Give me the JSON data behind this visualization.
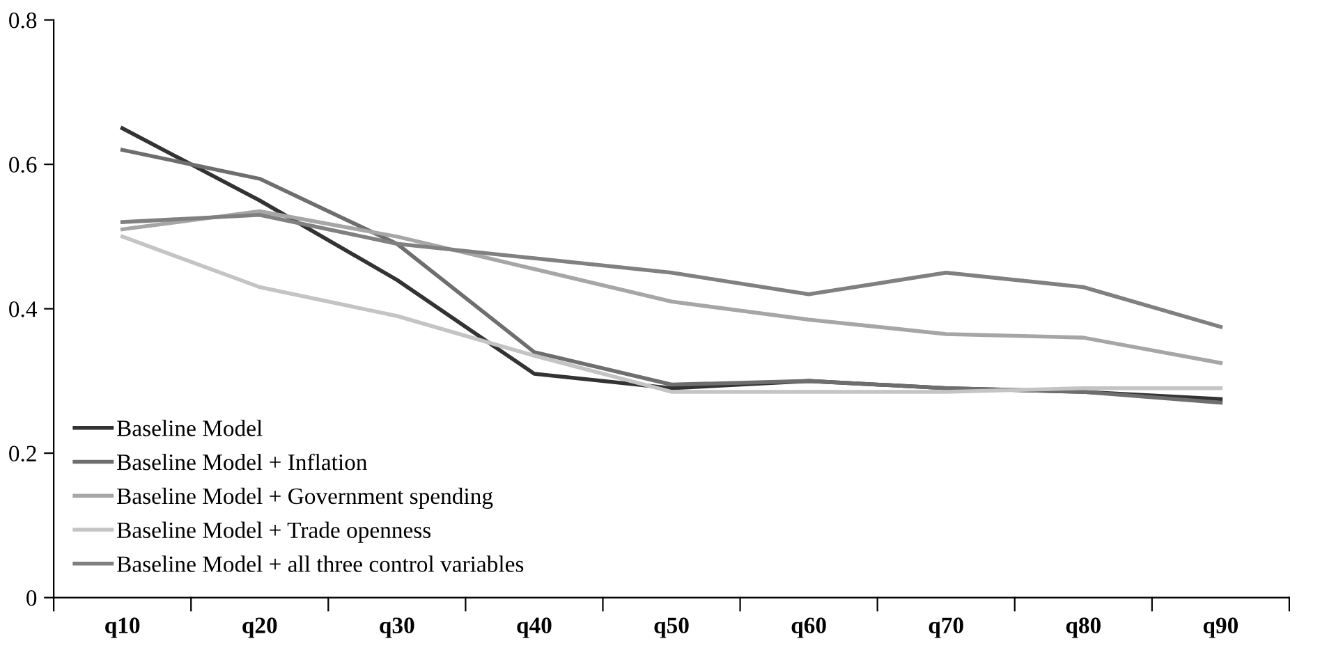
{
  "chart_data": {
    "type": "line",
    "categories": [
      "q10",
      "q20",
      "q30",
      "q40",
      "q50",
      "q60",
      "q70",
      "q80",
      "q90"
    ],
    "series": [
      {
        "name": "Baseline Model",
        "color": "#333333",
        "values": [
          0.65,
          0.55,
          0.44,
          0.31,
          0.29,
          0.3,
          0.29,
          0.285,
          0.275
        ]
      },
      {
        "name": "Baseline Model + Inflation",
        "color": "#6e6e6e",
        "values": [
          0.62,
          0.58,
          0.49,
          0.34,
          0.295,
          0.3,
          0.29,
          0.285,
          0.27
        ]
      },
      {
        "name": "Baseline Model + Government spending",
        "color": "#a6a6a6",
        "values": [
          0.51,
          0.535,
          0.5,
          0.455,
          0.41,
          0.385,
          0.365,
          0.36,
          0.325
        ]
      },
      {
        "name": "Baseline Model + Trade openness",
        "color": "#c4c4c4",
        "values": [
          0.5,
          0.43,
          0.39,
          0.335,
          0.285,
          0.285,
          0.285,
          0.29,
          0.29
        ]
      },
      {
        "name": "Baseline Model + all three control variables",
        "color": "#808080",
        "values": [
          0.52,
          0.53,
          0.49,
          0.47,
          0.45,
          0.42,
          0.45,
          0.43,
          0.375
        ]
      }
    ],
    "ylim": [
      0,
      0.8
    ],
    "yticks": [
      0,
      0.2,
      0.4,
      0.6,
      0.8
    ],
    "grid": false,
    "legend": "bottom left",
    "marker": "none",
    "line_style": "solid"
  }
}
